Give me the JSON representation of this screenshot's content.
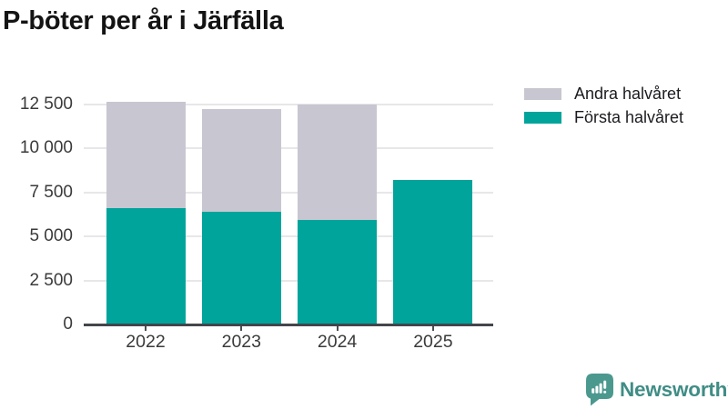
{
  "title": "P-böter per år i Järfälla",
  "chart_data": {
    "type": "bar",
    "stacked": true,
    "title": "P-böter per år i Järfälla",
    "categories": [
      "2022",
      "2023",
      "2024",
      "2025"
    ],
    "series": [
      {
        "name": "Första halvåret",
        "color": "#00a49b",
        "values": [
          6600,
          6400,
          5950,
          8200
        ]
      },
      {
        "name": "Andra halvåret",
        "color": "#c8c6d0",
        "values": [
          6050,
          5800,
          6550,
          null
        ]
      }
    ],
    "totals": [
      12650,
      12200,
      12500,
      8200
    ],
    "xlabel": "",
    "ylabel": "",
    "ylim": [
      0,
      13000
    ],
    "grid": true,
    "y_ticks": [
      {
        "value": 0,
        "label": "0"
      },
      {
        "value": 2500,
        "label": "2 500"
      },
      {
        "value": 5000,
        "label": "5 000"
      },
      {
        "value": 7500,
        "label": "7 500"
      },
      {
        "value": 10000,
        "label": "10 000"
      },
      {
        "value": 12500,
        "label": "12 500"
      }
    ],
    "legend_position": "top-right",
    "legend": [
      {
        "label": "Andra halvåret",
        "color": "#c8c6d0"
      },
      {
        "label": "Första halvåret",
        "color": "#00a49b"
      }
    ]
  },
  "branding": {
    "logo_text": "Newsworthy",
    "logo_color": "#3f8d85",
    "logo_icon": "speech-bubble-bar-chart-icon",
    "logo_icon_color": "#4b988e"
  },
  "colors": {
    "background": "#ffffff",
    "title_text": "#141414",
    "axis_line": "#43464b",
    "tick_mark": "#4a4d52",
    "grid_line": "#e7e7ea",
    "tick_label_text": "#3a3a3a",
    "bar_teal": "#00a49b",
    "bar_gray": "#c8c6d0"
  }
}
